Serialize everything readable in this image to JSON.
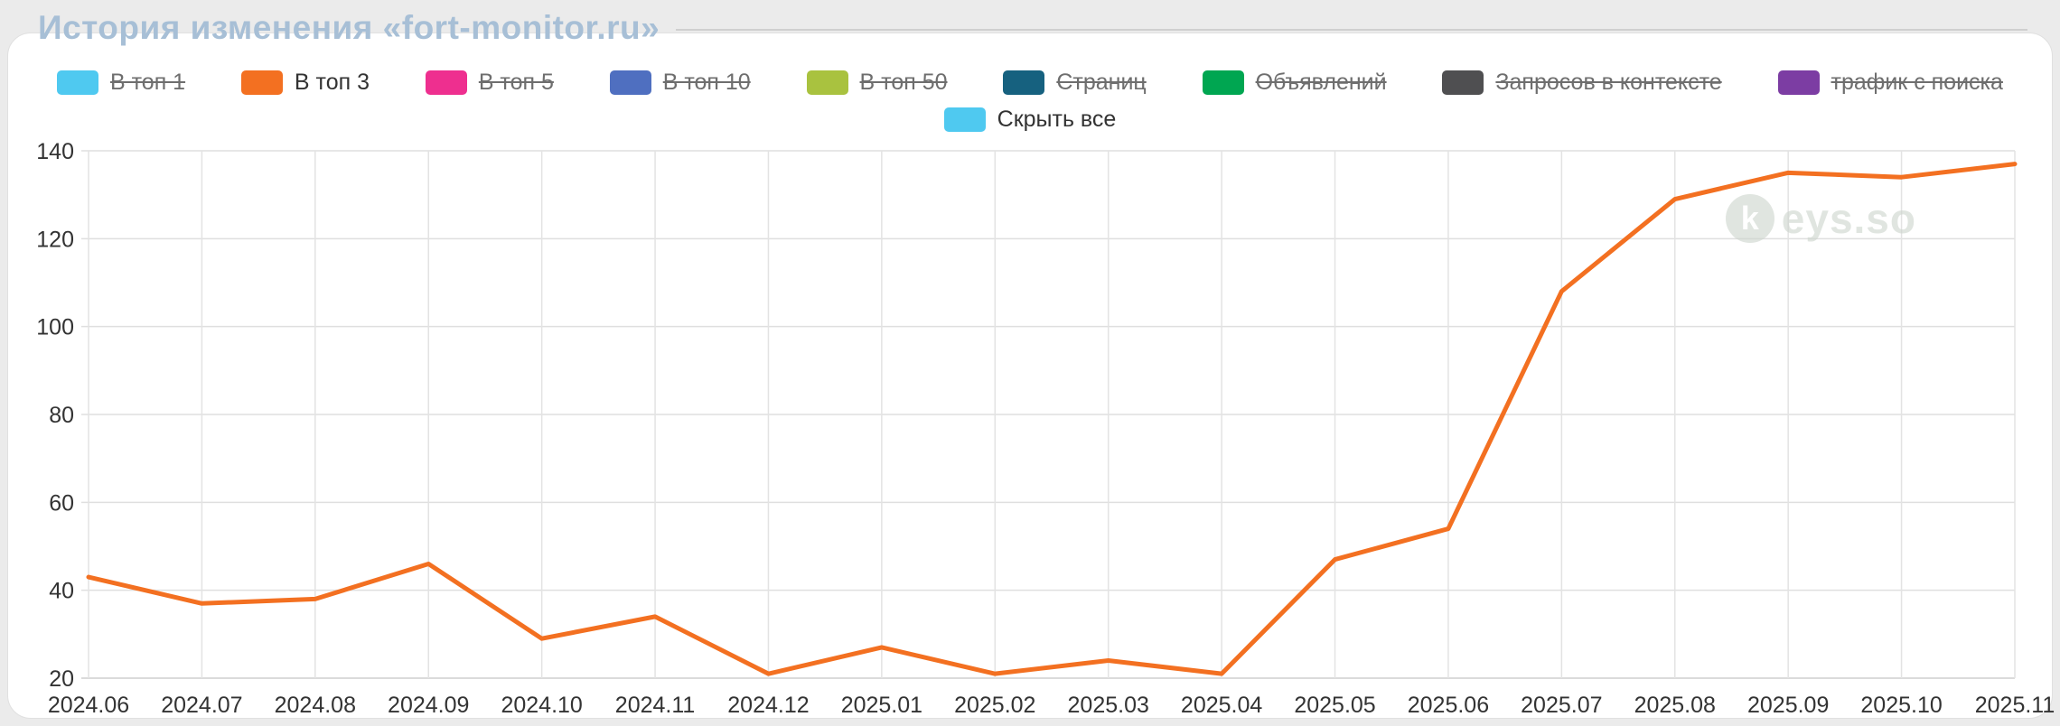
{
  "page": {
    "title": "История изменения «fort-monitor.ru»"
  },
  "legend": {
    "items": [
      {
        "label": "В топ 1",
        "color": "#4fc9f0",
        "disabled": true
      },
      {
        "label": "В топ 3",
        "color": "#f37021",
        "disabled": false
      },
      {
        "label": "В топ 5",
        "color": "#ee2f8f",
        "disabled": true
      },
      {
        "label": "В топ 10",
        "color": "#4f6fc0",
        "disabled": true
      },
      {
        "label": "В топ 50",
        "color": "#a9c23f",
        "disabled": true
      },
      {
        "label": "Страниц",
        "color": "#16617f",
        "disabled": true
      },
      {
        "label": "Объявлений",
        "color": "#00a651",
        "disabled": true
      },
      {
        "label": "Запросов в контексте",
        "color": "#4f4f51",
        "disabled": true
      },
      {
        "label": "трафик с поиска",
        "color": "#7c3da3",
        "disabled": true
      }
    ],
    "hide_all": {
      "label": "Скрыть все",
      "color": "#4fc9f0"
    }
  },
  "watermark": {
    "letter": "k",
    "rest": "eys.so"
  },
  "chart_data": {
    "type": "line",
    "title": "История изменения «fort-monitor.ru»",
    "categories": [
      "2024.06",
      "2024.07",
      "2024.08",
      "2024.09",
      "2024.10",
      "2024.11",
      "2024.12",
      "2025.01",
      "2025.02",
      "2025.03",
      "2025.04",
      "2025.05",
      "2025.06",
      "2025.07",
      "2025.08",
      "2025.09",
      "2025.10",
      "2025.11"
    ],
    "series": [
      {
        "name": "В топ 3",
        "color": "#f37021",
        "values": [
          43,
          37,
          38,
          46,
          29,
          34,
          21,
          27,
          21,
          24,
          21,
          47,
          54,
          108,
          129,
          135,
          134,
          137
        ]
      }
    ],
    "xlabel": "",
    "ylabel": "",
    "ylim": [
      20,
      140
    ],
    "ytick": 20,
    "grid": true,
    "legend_position": "top"
  }
}
